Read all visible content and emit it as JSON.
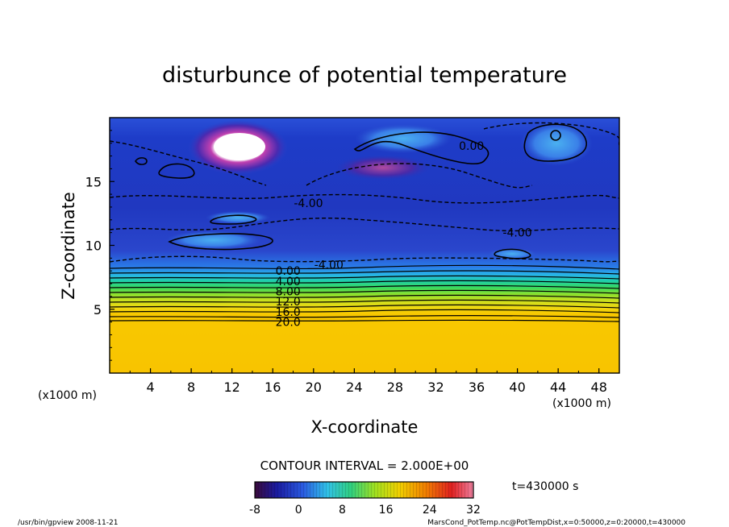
{
  "chart_data": {
    "type": "heatmap",
    "title": "disturbunce of potential temperature",
    "xlabel": "X-coordinate",
    "ylabel": "Z-coordinate",
    "x_unit_left": "(x1000 m)",
    "x_unit_right": "(x1000 m)",
    "xlim": [
      0,
      50
    ],
    "ylim": [
      0,
      20
    ],
    "x_ticks": [
      "4",
      "8",
      "12",
      "16",
      "20",
      "24",
      "28",
      "32",
      "36",
      "40",
      "44",
      "48"
    ],
    "y_ticks": [
      "5",
      "10",
      "15"
    ],
    "contour_interval_label": "CONTOUR INTERVAL = 2.000E+00",
    "time_label": "t=430000 s",
    "colorbar": {
      "ticks": [
        "-8",
        "0",
        "8",
        "16",
        "24",
        "32"
      ],
      "min": -8,
      "max": 32,
      "colors": [
        "#3a0a3a",
        "#1a1aa0",
        "#2a5ae0",
        "#30c0e8",
        "#30d080",
        "#a0e020",
        "#f0d000",
        "#f08000",
        "#e02020",
        "#f080a0"
      ]
    },
    "contour_labels": [
      {
        "text": "0.00",
        "x": 17.5,
        "z": 8.0
      },
      {
        "text": "4.00",
        "x": 17.5,
        "z": 7.2
      },
      {
        "text": "8.00",
        "x": 17.5,
        "z": 6.4
      },
      {
        "text": "12.0",
        "x": 17.5,
        "z": 5.6
      },
      {
        "text": "16.0",
        "x": 17.5,
        "z": 4.8
      },
      {
        "text": "20.0",
        "x": 17.5,
        "z": 4.0
      },
      {
        "text": "-4.00",
        "x": 21.5,
        "z": 8.5
      },
      {
        "text": "-4.00",
        "x": 19.5,
        "z": 13.3
      },
      {
        "text": "-4.00",
        "x": 40.0,
        "z": 11.0
      },
      {
        "text": "0.00",
        "x": 35.5,
        "z": 17.8
      }
    ]
  },
  "footer": {
    "left": "/usr/bin/gpview   2008-11-21",
    "right": "MarsCond_PotTemp.nc@PotTempDist,x=0:50000,z=0:20000,t=430000"
  }
}
